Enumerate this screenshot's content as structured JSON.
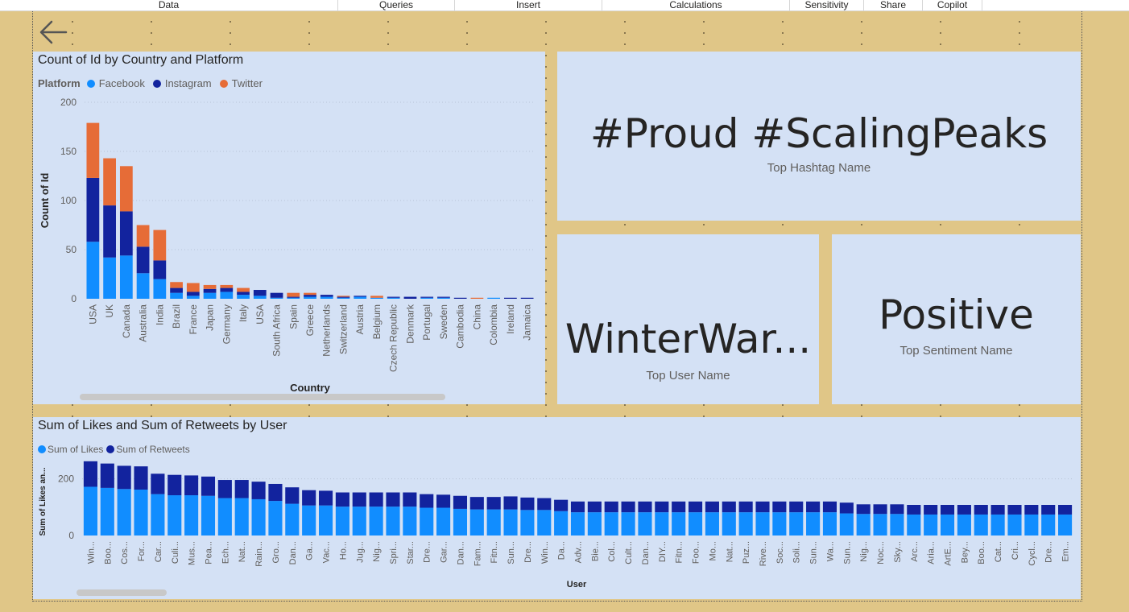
{
  "ribbon": [
    {
      "label": "Data",
      "width": 420
    },
    {
      "label": "Queries",
      "width": 145
    },
    {
      "label": "Insert",
      "width": 183
    },
    {
      "label": "Calculations",
      "width": 233
    },
    {
      "label": "Sensitivity",
      "width": 92
    },
    {
      "label": "Share",
      "width": 73
    },
    {
      "label": "Copilot",
      "width": 74
    }
  ],
  "country_chart": {
    "title": "Count of Id by Country and Platform",
    "legend_title": "Platform",
    "xlabel": "Country",
    "ylabel": "Count of Id"
  },
  "hashtag_card": {
    "value": "#Proud #ScalingPeaks",
    "label": "Top Hashtag Name"
  },
  "user_card": {
    "value": "WinterWar...",
    "label": "Top User Name"
  },
  "sentiment_card": {
    "value": "Positive",
    "label": "Top Sentiment Name"
  },
  "user_chart": {
    "title": "Sum of Likes and Sum of Retweets by User",
    "xlabel": "User",
    "ylabel": "Sum of Likes an..."
  },
  "colors": {
    "facebook": "#118dff",
    "instagram": "#12239e",
    "twitter": "#e66c37",
    "likes": "#118dff",
    "retweets": "#12239e"
  },
  "chart_data": [
    {
      "type": "bar",
      "stacked": true,
      "title": "Count of Id by Country and Platform",
      "xlabel": "Country",
      "ylabel": "Count of Id",
      "ylim": [
        0,
        200
      ],
      "yticks": [
        0,
        50,
        100,
        150,
        200
      ],
      "categories": [
        "USA",
        "UK",
        "Canada",
        "Australia",
        "India",
        "Brazil",
        "France",
        "Japan",
        "Germany",
        "Italy",
        "USA",
        "South Africa",
        "Spain",
        "Greece",
        "Netherlands",
        "Switzerland",
        "Austria",
        "Belgium",
        "Czech Republic",
        "Denmark",
        "Portugal",
        "Sweden",
        "Cambodia",
        "China",
        "Colombia",
        "Ireland",
        "Jamaica"
      ],
      "series": [
        {
          "name": "Facebook",
          "values": [
            58,
            42,
            44,
            26,
            20,
            6,
            3,
            6,
            7,
            4,
            3,
            1,
            1,
            2,
            2,
            1,
            2,
            1,
            1,
            0,
            1,
            1,
            0,
            0,
            1,
            0,
            0
          ]
        },
        {
          "name": "Instagram",
          "values": [
            65,
            53,
            45,
            27,
            19,
            5,
            4,
            4,
            4,
            3,
            6,
            5,
            1,
            2,
            2,
            1,
            1,
            0,
            1,
            2,
            1,
            1,
            1,
            0,
            0,
            1,
            1
          ]
        },
        {
          "name": "Twitter",
          "values": [
            56,
            48,
            46,
            22,
            31,
            6,
            9,
            4,
            3,
            4,
            0,
            0,
            4,
            2,
            0,
            1,
            0,
            2,
            0,
            0,
            0,
            0,
            0,
            1,
            0,
            0,
            0
          ]
        }
      ],
      "legend": "top-left",
      "grid": true
    },
    {
      "type": "bar",
      "stacked": true,
      "title": "Sum of Likes and Sum of Retweets by User",
      "xlabel": "User",
      "ylabel": "Sum of Likes an...",
      "ylim": [
        0,
        270
      ],
      "yticks": [
        0,
        200
      ],
      "categories": [
        "Win...",
        "Boo...",
        "Cos...",
        "For...",
        "Car...",
        "Culi...",
        "Mus...",
        "Pea...",
        "Ech...",
        "Nat...",
        "Rain...",
        "Gro...",
        "Dan...",
        "Ga...",
        "Vac...",
        "Ho...",
        "Jug...",
        "Nig...",
        "Spri...",
        "Star...",
        "Dre...",
        "Gar...",
        "Dan...",
        "Fam...",
        "Fitn...",
        "Sun...",
        "Dre...",
        "Win...",
        "Da...",
        "Adv...",
        "Bie...",
        "Col...",
        "Cult...",
        "Dan...",
        "DIY...",
        "Fitn...",
        "Foo...",
        "Mo...",
        "Nat...",
        "Puz...",
        "Rive...",
        "Soc...",
        "Soli...",
        "Sun...",
        "Wa...",
        "Sun...",
        "Nig...",
        "Noc...",
        "Sky...",
        "Arc...",
        "Aria...",
        "ArtE...",
        "Bey...",
        "Boo...",
        "Cat...",
        "Cri...",
        "Cycl...",
        "Dre...",
        "Em..."
      ],
      "series": [
        {
          "name": "Sum of Likes",
          "values": [
            172,
            168,
            164,
            162,
            146,
            142,
            142,
            140,
            132,
            132,
            128,
            122,
            112,
            106,
            106,
            102,
            102,
            102,
            102,
            102,
            98,
            98,
            94,
            92,
            92,
            92,
            90,
            90,
            86,
            82,
            82,
            82,
            82,
            82,
            82,
            82,
            82,
            82,
            82,
            82,
            82,
            82,
            82,
            82,
            82,
            78,
            76,
            76,
            76,
            74,
            74,
            74,
            74,
            74,
            74,
            74,
            74,
            74,
            74
          ]
        },
        {
          "name": "Sum of Retweets",
          "values": [
            90,
            86,
            82,
            82,
            72,
            72,
            70,
            68,
            64,
            64,
            62,
            60,
            58,
            54,
            52,
            50,
            50,
            50,
            50,
            50,
            48,
            46,
            46,
            44,
            44,
            46,
            44,
            42,
            40,
            38,
            38,
            38,
            38,
            38,
            38,
            38,
            38,
            38,
            38,
            38,
            38,
            38,
            38,
            38,
            38,
            38,
            34,
            34,
            34,
            34,
            34,
            34,
            34,
            34,
            34,
            34,
            34,
            34,
            34
          ]
        }
      ],
      "legend": "top-left",
      "grid": true
    }
  ]
}
